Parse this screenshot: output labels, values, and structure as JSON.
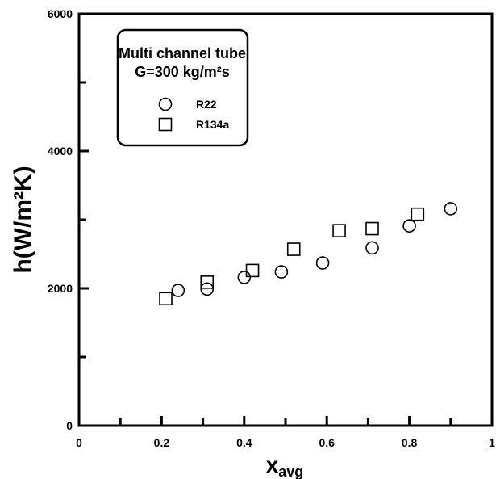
{
  "chart_data": {
    "type": "scatter",
    "title": "",
    "xlabel_main": "x",
    "xlabel_sub": "avg",
    "ylabel": "h(W/m²K)",
    "xlim": [
      0,
      1
    ],
    "ylim": [
      0,
      6000
    ],
    "x_ticks": [
      "0",
      "0.2",
      "0.4",
      "0.6",
      "0.8",
      "1"
    ],
    "y_ticks": [
      "0",
      "2000",
      "4000",
      "6000"
    ],
    "x_tick_values": [
      0,
      0.2,
      0.4,
      0.6,
      0.8,
      1
    ],
    "y_tick_values": [
      0,
      2000,
      4000,
      6000
    ],
    "grid": false,
    "legend_position": "top-left",
    "legend_title_line1": "Multi channel tube",
    "legend_title_line2": "G=300 kg/m²s",
    "series": [
      {
        "name": "R22",
        "marker": "circle",
        "x": [
          0.24,
          0.31,
          0.4,
          0.49,
          0.59,
          0.71,
          0.8,
          0.9
        ],
        "y": [
          1970,
          1990,
          2160,
          2240,
          2370,
          2590,
          2910,
          3160
        ]
      },
      {
        "name": "R134a",
        "marker": "square",
        "x": [
          0.21,
          0.31,
          0.42,
          0.52,
          0.63,
          0.71,
          0.82
        ],
        "y": [
          1850,
          2090,
          2260,
          2570,
          2840,
          2870,
          3080
        ]
      }
    ]
  }
}
